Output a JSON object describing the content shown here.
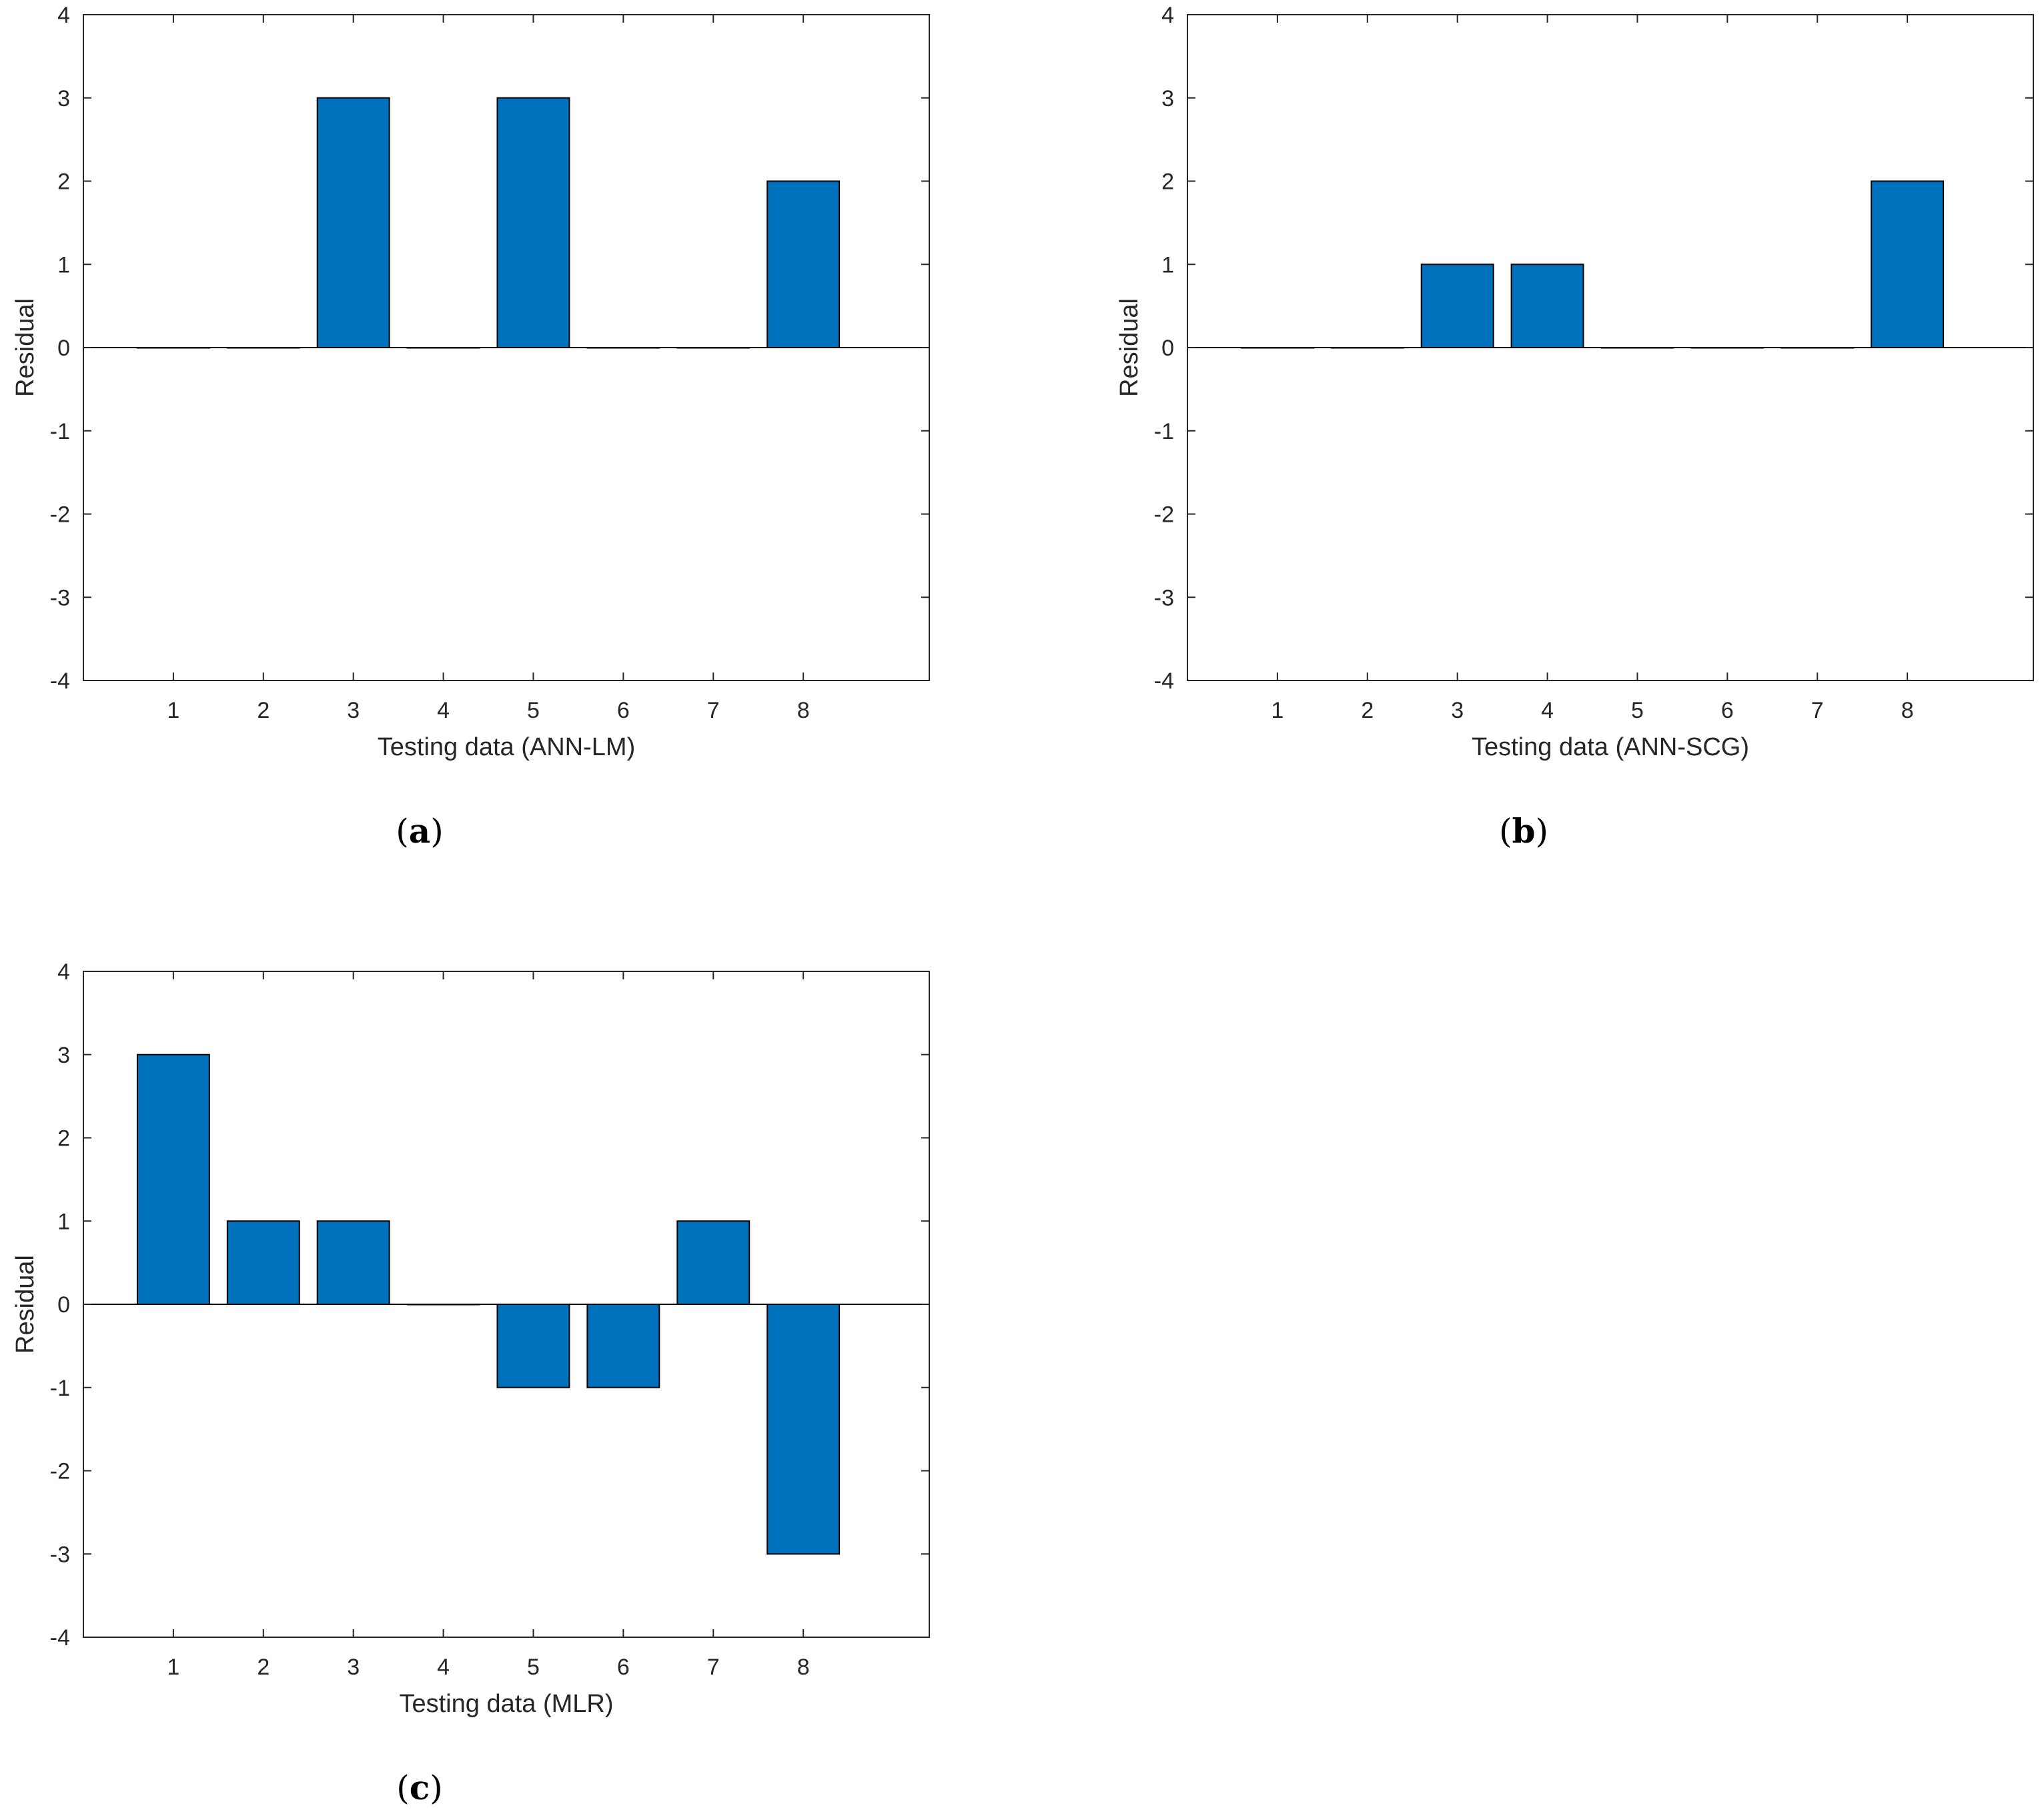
{
  "chart_data": [
    {
      "type": "bar",
      "panel": "a",
      "categories": [
        "1",
        "2",
        "3",
        "4",
        "5",
        "6",
        "7",
        "8"
      ],
      "values": [
        0,
        0,
        3,
        0,
        3,
        0,
        0,
        2
      ],
      "xlabel": "Testing data (ANN-LM)",
      "ylabel": "Residual",
      "ylim": [
        -4,
        4
      ],
      "yticks": [
        "-4",
        "-3",
        "-2",
        "-1",
        "0",
        "1",
        "2",
        "3",
        "4"
      ],
      "bar_color": "#0072BD"
    },
    {
      "type": "bar",
      "panel": "b",
      "categories": [
        "1",
        "2",
        "3",
        "4",
        "5",
        "6",
        "7",
        "8"
      ],
      "values": [
        0,
        0,
        1,
        1,
        0,
        0,
        0,
        2
      ],
      "xlabel": "Testing data (ANN-SCG)",
      "ylabel": "Residual",
      "ylim": [
        -4,
        4
      ],
      "yticks": [
        "-4",
        "-3",
        "-2",
        "-1",
        "0",
        "1",
        "2",
        "3",
        "4"
      ],
      "bar_color": "#0072BD"
    },
    {
      "type": "bar",
      "panel": "c",
      "categories": [
        "1",
        "2",
        "3",
        "4",
        "5",
        "6",
        "7",
        "8"
      ],
      "values": [
        3,
        1,
        1,
        0,
        -1,
        -1,
        1,
        -3
      ],
      "xlabel": "Testing data (MLR)",
      "ylabel": "Residual",
      "ylim": [
        -4,
        4
      ],
      "yticks": [
        "-4",
        "-3",
        "-2",
        "-1",
        "0",
        "1",
        "2",
        "3",
        "4"
      ],
      "bar_color": "#0072BD"
    }
  ]
}
